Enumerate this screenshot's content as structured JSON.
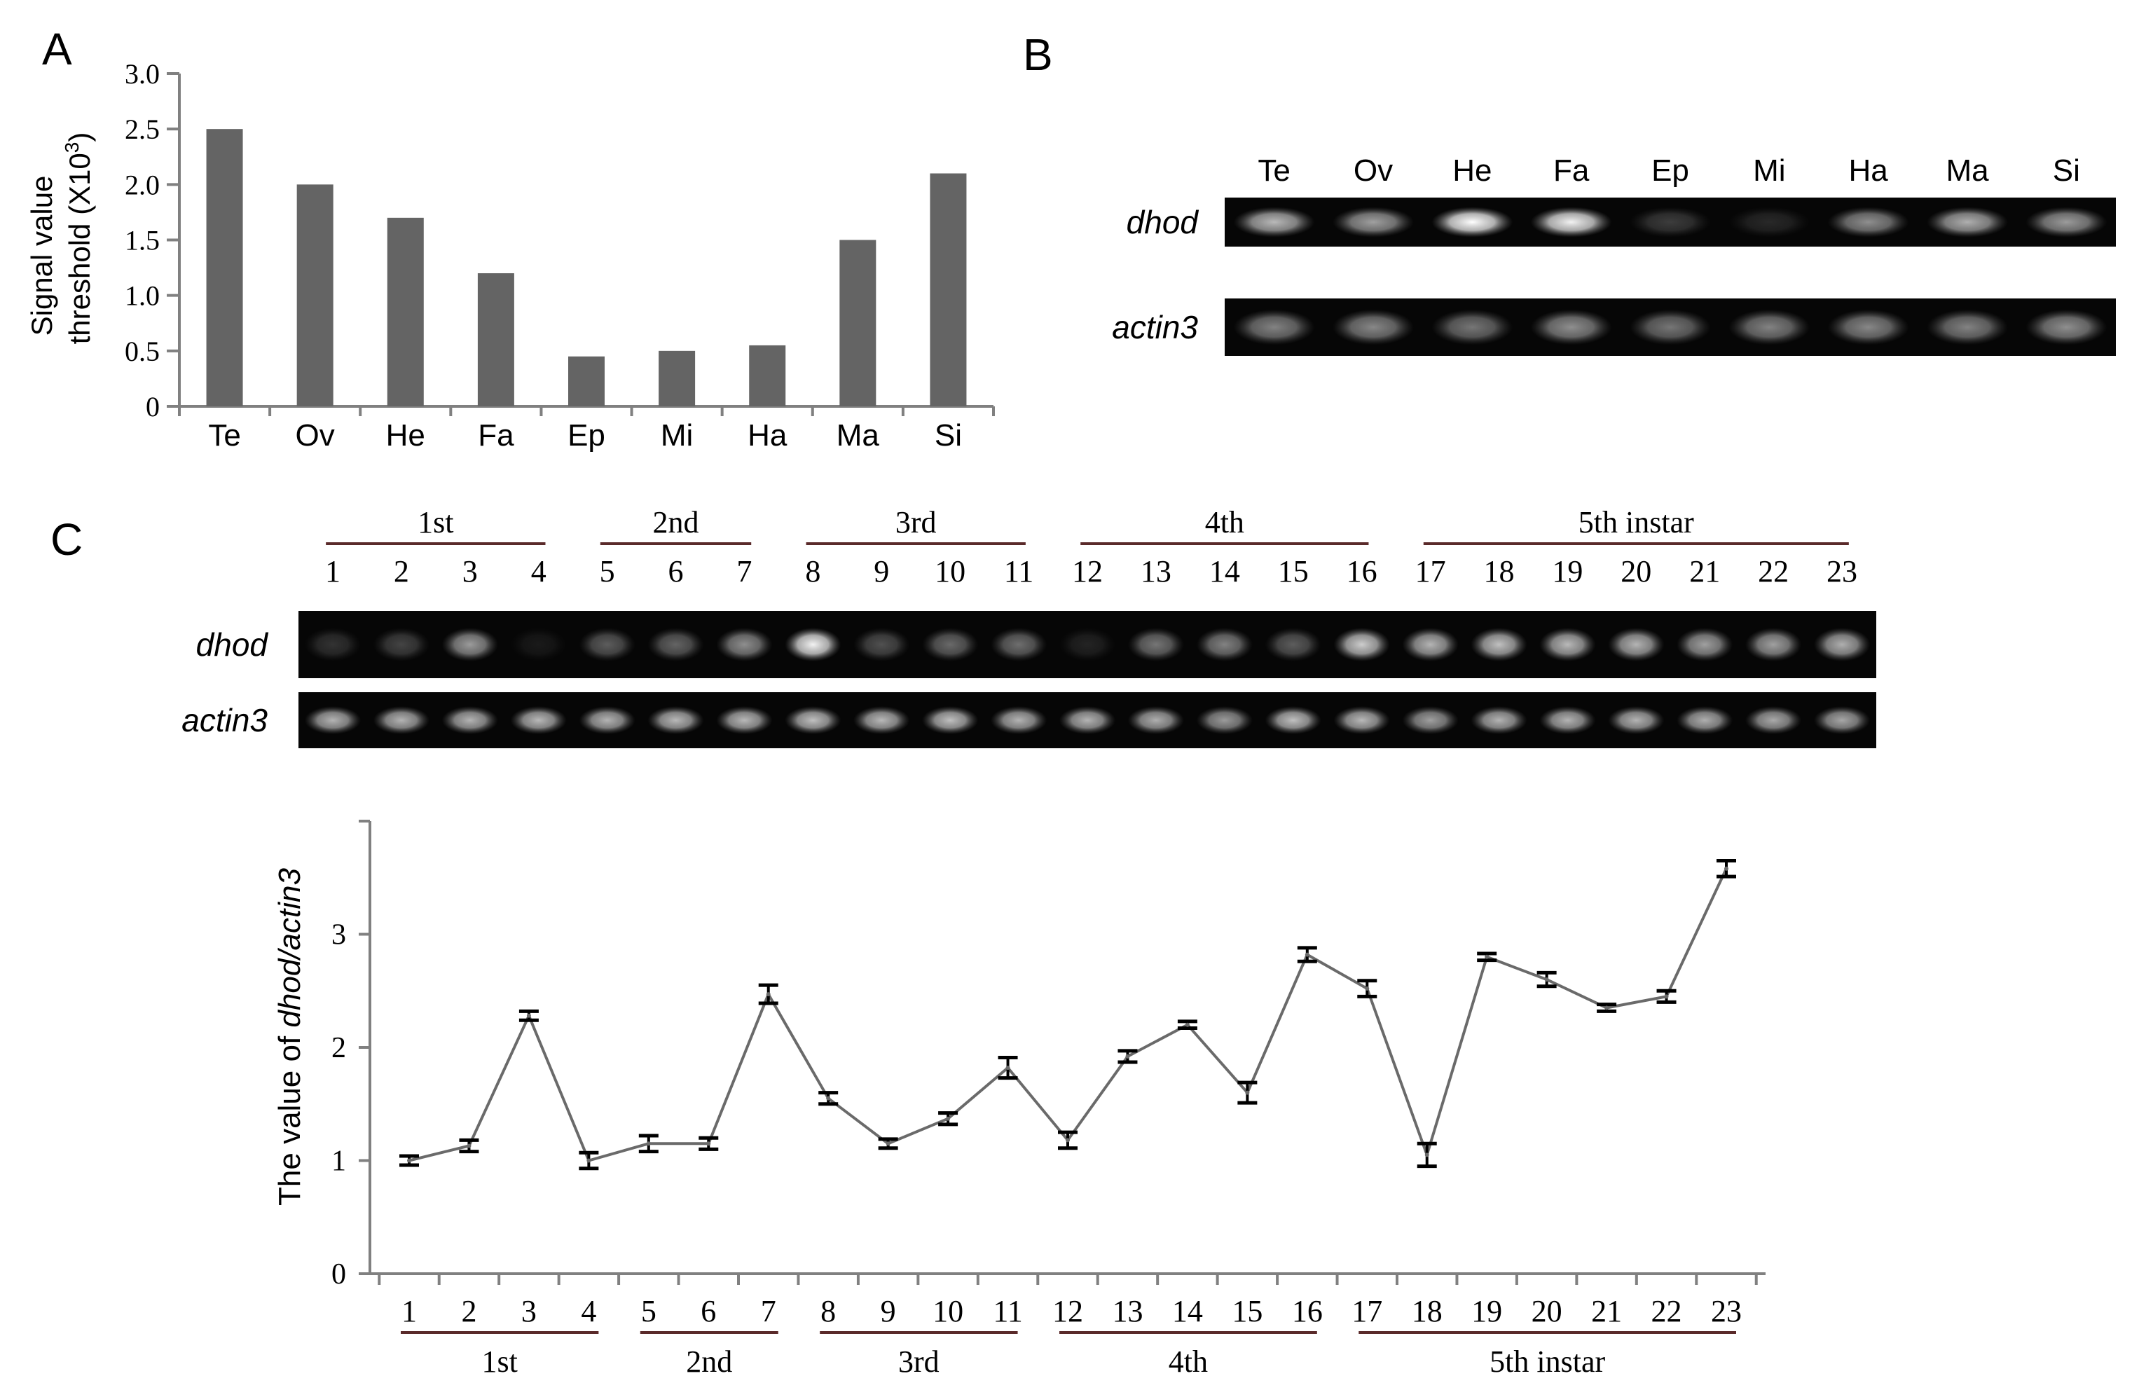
{
  "panels": {
    "a": "A",
    "b": "B",
    "c": "C"
  },
  "colors": {
    "bar": "#646464",
    "line": "#6a6a6a",
    "axis": "#808080",
    "stage_rule": "#5a2a2a",
    "gel": "#060606",
    "band": "#e8e8e8"
  },
  "gel_b": {
    "lanes": [
      "Te",
      "Ov",
      "He",
      "Fa",
      "Ep",
      "Mi",
      "Ha",
      "Ma",
      "Si"
    ],
    "rows": [
      {
        "label": "dhod",
        "intensity": [
          0.72,
          0.62,
          1.0,
          0.95,
          0.22,
          0.14,
          0.55,
          0.68,
          0.6
        ]
      },
      {
        "label": "actin3",
        "intensity": [
          0.5,
          0.52,
          0.45,
          0.55,
          0.45,
          0.5,
          0.52,
          0.5,
          0.55
        ]
      }
    ]
  },
  "gel_c": {
    "stages": [
      "1st",
      "2nd",
      "3rd",
      "4th",
      "5th instar"
    ],
    "lanes": [
      "1",
      "2",
      "3",
      "4",
      "5",
      "6",
      "7",
      "8",
      "9",
      "10",
      "11",
      "12",
      "13",
      "14",
      "15",
      "16",
      "17",
      "18",
      "19",
      "20",
      "21",
      "22",
      "23"
    ],
    "rows": [
      {
        "label": "dhod",
        "intensity": [
          0.18,
          0.25,
          0.6,
          0.08,
          0.35,
          0.38,
          0.55,
          0.95,
          0.3,
          0.4,
          0.42,
          0.12,
          0.45,
          0.5,
          0.35,
          0.8,
          0.7,
          0.75,
          0.72,
          0.7,
          0.62,
          0.62,
          0.68
        ]
      },
      {
        "label": "actin3",
        "intensity": [
          0.7,
          0.7,
          0.7,
          0.72,
          0.7,
          0.72,
          0.72,
          0.75,
          0.72,
          0.75,
          0.7,
          0.7,
          0.68,
          0.6,
          0.75,
          0.72,
          0.62,
          0.7,
          0.7,
          0.7,
          0.68,
          0.66,
          0.65
        ]
      }
    ]
  },
  "chart_data": [
    {
      "type": "bar",
      "ylabel_line1": "Signal value",
      "ylabel_line2": "threshold (X10",
      "ylabel_sup": "3",
      "ylabel_end": ")",
      "categories": [
        "Te",
        "Ov",
        "He",
        "Fa",
        "Ep",
        "Mi",
        "Ha",
        "Ma",
        "Si"
      ],
      "values": [
        2.5,
        2.0,
        1.7,
        1.2,
        0.45,
        0.5,
        0.55,
        1.5,
        2.1
      ],
      "ylim": [
        0,
        3.0
      ],
      "yticks": [
        "0",
        "0.5",
        "1.0",
        "1.5",
        "2.0",
        "2.5",
        "3.0"
      ],
      "grid": false
    },
    {
      "type": "line",
      "ylabel_prefix": "The  value of ",
      "ylabel_italic": "dhod/actin3",
      "x": [
        "1",
        "2",
        "3",
        "4",
        "5",
        "6",
        "7",
        "8",
        "9",
        "10",
        "11",
        "12",
        "13",
        "14",
        "15",
        "16",
        "17",
        "18",
        "19",
        "20",
        "21",
        "22",
        "23"
      ],
      "values": [
        1.0,
        1.13,
        2.28,
        1.0,
        1.15,
        1.15,
        2.47,
        1.55,
        1.15,
        1.37,
        1.82,
        1.18,
        1.92,
        2.2,
        1.6,
        2.82,
        2.52,
        1.05,
        2.8,
        2.6,
        2.35,
        2.45,
        3.58
      ],
      "errors": [
        0.04,
        0.05,
        0.04,
        0.07,
        0.07,
        0.05,
        0.08,
        0.05,
        0.04,
        0.05,
        0.09,
        0.07,
        0.05,
        0.03,
        0.09,
        0.06,
        0.07,
        0.1,
        0.03,
        0.06,
        0.03,
        0.05,
        0.07
      ],
      "ylim": [
        0,
        4
      ],
      "yticks": [
        "0",
        "1",
        "2",
        "3"
      ],
      "stages": [
        "1st",
        "2nd",
        "3rd",
        "4th",
        "5th instar"
      ],
      "grid": false
    }
  ]
}
